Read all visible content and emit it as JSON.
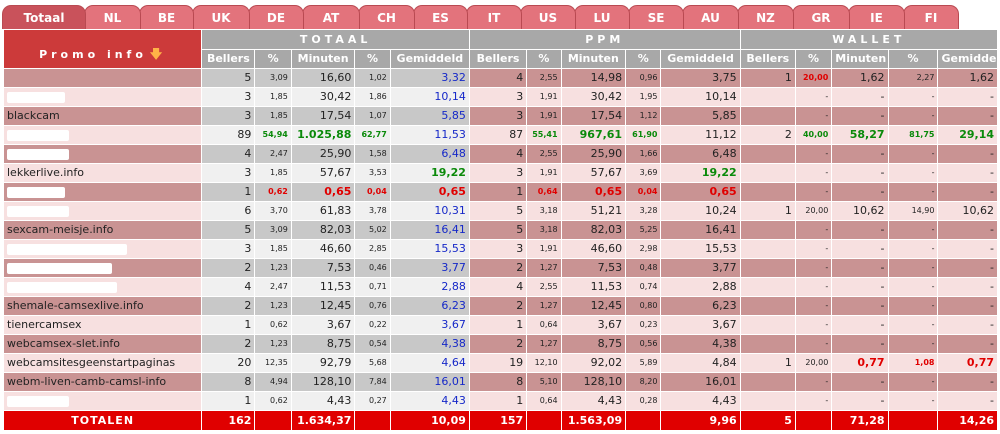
{
  "tabs": [
    "Totaal",
    "NL",
    "BE",
    "UK",
    "DE",
    "AT",
    "CH",
    "ES",
    "IT",
    "US",
    "LU",
    "SE",
    "AU",
    "NZ",
    "GR",
    "IE",
    "FI"
  ],
  "groups": {
    "totaal": "TOTAAL",
    "ppm": "PPM",
    "wallet": "WALLET"
  },
  "columns": {
    "promo": "Promo info",
    "bellers": "Bellers",
    "pct": "%",
    "minuten": "Minuten",
    "gemiddeld": "Gemiddeld"
  },
  "rows": [
    {
      "name": "",
      "redact": 0,
      "t": [
        "5",
        "3,09",
        "16,60",
        "1,02",
        "3,32"
      ],
      "p": [
        "4",
        "2,55",
        "14,98",
        "0,96",
        "3,75"
      ],
      "w": [
        "1",
        "20,00",
        "1,62",
        "2,27",
        "1,62"
      ],
      "tc": [
        "",
        "",
        "",
        "",
        "blue"
      ],
      "pc": [
        "",
        "",
        "",
        "",
        ""
      ],
      "wc": [
        "",
        "red",
        "",
        "",
        ""
      ]
    },
    {
      "name": "",
      "redact": 58,
      "t": [
        "3",
        "1,85",
        "30,42",
        "1,86",
        "10,14"
      ],
      "p": [
        "3",
        "1,91",
        "30,42",
        "1,95",
        "10,14"
      ],
      "w": [
        "",
        "-",
        "-",
        "-",
        "-"
      ],
      "tc": [
        "",
        "",
        "",
        "",
        "blue"
      ],
      "pc": [
        "",
        "",
        "",
        "",
        ""
      ],
      "wc": [
        "",
        "",
        "",
        "",
        ""
      ]
    },
    {
      "name": "blackcam",
      "redact": 0,
      "t": [
        "3",
        "1,85",
        "17,54",
        "1,07",
        "5,85"
      ],
      "p": [
        "3",
        "1,91",
        "17,54",
        "1,12",
        "5,85"
      ],
      "w": [
        "",
        "-",
        "-",
        "-",
        "-"
      ],
      "tc": [
        "",
        "",
        "",
        "",
        "blue"
      ],
      "pc": [
        "",
        "",
        "",
        "",
        ""
      ],
      "wc": [
        "",
        "",
        "",
        "",
        ""
      ]
    },
    {
      "name": "",
      "redact": 62,
      "t": [
        "89",
        "54,94",
        "1.025,88",
        "62,77",
        "11,53"
      ],
      "p": [
        "87",
        "55,41",
        "967,61",
        "61,90",
        "11,12"
      ],
      "w": [
        "2",
        "40,00",
        "58,27",
        "81,75",
        "29,14"
      ],
      "tc": [
        "",
        "green",
        "green",
        "green",
        "blue"
      ],
      "pc": [
        "",
        "green",
        "green",
        "green",
        ""
      ],
      "wc": [
        "",
        "green",
        "green",
        "green",
        "green"
      ]
    },
    {
      "name": "",
      "redact": 62,
      "t": [
        "4",
        "2,47",
        "25,90",
        "1,58",
        "6,48"
      ],
      "p": [
        "4",
        "2,55",
        "25,90",
        "1,66",
        "6,48"
      ],
      "w": [
        "",
        "-",
        "-",
        "-",
        "-"
      ],
      "tc": [
        "",
        "",
        "",
        "",
        "blue"
      ],
      "pc": [
        "",
        "",
        "",
        "",
        ""
      ],
      "wc": [
        "",
        "",
        "",
        "",
        ""
      ]
    },
    {
      "name": "lekkerlive.info",
      "redact": 0,
      "t": [
        "3",
        "1,85",
        "57,67",
        "3,53",
        "19,22"
      ],
      "p": [
        "3",
        "1,91",
        "57,67",
        "3,69",
        "19,22"
      ],
      "w": [
        "",
        "-",
        "-",
        "-",
        "-"
      ],
      "tc": [
        "",
        "",
        "",
        "",
        "green"
      ],
      "pc": [
        "",
        "",
        "",
        "",
        "green"
      ],
      "wc": [
        "",
        "",
        "",
        "",
        ""
      ]
    },
    {
      "name": "",
      "redact": 58,
      "t": [
        "1",
        "0,62",
        "0,65",
        "0,04",
        "0,65"
      ],
      "p": [
        "1",
        "0,64",
        "0,65",
        "0,04",
        "0,65"
      ],
      "w": [
        "",
        "-",
        "-",
        "-",
        "-"
      ],
      "tc": [
        "",
        "red",
        "red",
        "red",
        "red"
      ],
      "pc": [
        "",
        "red",
        "red",
        "red",
        "red"
      ],
      "wc": [
        "",
        "",
        "",
        "",
        ""
      ]
    },
    {
      "name": "",
      "redact": 62,
      "t": [
        "6",
        "3,70",
        "61,83",
        "3,78",
        "10,31"
      ],
      "p": [
        "5",
        "3,18",
        "51,21",
        "3,28",
        "10,24"
      ],
      "w": [
        "1",
        "20,00",
        "10,62",
        "14,90",
        "10,62"
      ],
      "tc": [
        "",
        "",
        "",
        "",
        "blue"
      ],
      "pc": [
        "",
        "",
        "",
        "",
        ""
      ],
      "wc": [
        "",
        "",
        "",
        "",
        ""
      ]
    },
    {
      "name": "sexcam-meisje.info",
      "redact": 0,
      "t": [
        "5",
        "3,09",
        "82,03",
        "5,02",
        "16,41"
      ],
      "p": [
        "5",
        "3,18",
        "82,03",
        "5,25",
        "16,41"
      ],
      "w": [
        "",
        "-",
        "-",
        "-",
        "-"
      ],
      "tc": [
        "",
        "",
        "",
        "",
        "blue"
      ],
      "pc": [
        "",
        "",
        "",
        "",
        ""
      ],
      "wc": [
        "",
        "",
        "",
        "",
        ""
      ]
    },
    {
      "name": "",
      "redact": 120,
      "t": [
        "3",
        "1,85",
        "46,60",
        "2,85",
        "15,53"
      ],
      "p": [
        "3",
        "1,91",
        "46,60",
        "2,98",
        "15,53"
      ],
      "w": [
        "",
        "-",
        "-",
        "-",
        "-"
      ],
      "tc": [
        "",
        "",
        "",
        "",
        "blue"
      ],
      "pc": [
        "",
        "",
        "",
        "",
        ""
      ],
      "wc": [
        "",
        "",
        "",
        "",
        ""
      ]
    },
    {
      "name": "",
      "redact": 105,
      "t": [
        "2",
        "1,23",
        "7,53",
        "0,46",
        "3,77"
      ],
      "p": [
        "2",
        "1,27",
        "7,53",
        "0,48",
        "3,77"
      ],
      "w": [
        "",
        "-",
        "-",
        "-",
        "-"
      ],
      "tc": [
        "",
        "",
        "",
        "",
        "blue"
      ],
      "pc": [
        "",
        "",
        "",
        "",
        ""
      ],
      "wc": [
        "",
        "",
        "",
        "",
        ""
      ]
    },
    {
      "name": "",
      "redact": 110,
      "t": [
        "4",
        "2,47",
        "11,53",
        "0,71",
        "2,88"
      ],
      "p": [
        "4",
        "2,55",
        "11,53",
        "0,74",
        "2,88"
      ],
      "w": [
        "",
        "-",
        "-",
        "-",
        "-"
      ],
      "tc": [
        "",
        "",
        "",
        "",
        "blue"
      ],
      "pc": [
        "",
        "",
        "",
        "",
        ""
      ],
      "wc": [
        "",
        "",
        "",
        "",
        ""
      ]
    },
    {
      "name": "shemale-camsexlive.info",
      "redact": 0,
      "t": [
        "2",
        "1,23",
        "12,45",
        "0,76",
        "6,23"
      ],
      "p": [
        "2",
        "1,27",
        "12,45",
        "0,80",
        "6,23"
      ],
      "w": [
        "",
        "-",
        "-",
        "-",
        "-"
      ],
      "tc": [
        "",
        "",
        "",
        "",
        "blue"
      ],
      "pc": [
        "",
        "",
        "",
        "",
        ""
      ],
      "wc": [
        "",
        "",
        "",
        "",
        ""
      ]
    },
    {
      "name": "tienercamsex",
      "redact": 0,
      "t": [
        "1",
        "0,62",
        "3,67",
        "0,22",
        "3,67"
      ],
      "p": [
        "1",
        "0,64",
        "3,67",
        "0,23",
        "3,67"
      ],
      "w": [
        "",
        "-",
        "-",
        "-",
        "-"
      ],
      "tc": [
        "",
        "",
        "",
        "",
        "blue"
      ],
      "pc": [
        "",
        "",
        "",
        "",
        ""
      ],
      "wc": [
        "",
        "",
        "",
        "",
        ""
      ]
    },
    {
      "name": "webcamsex-slet.info",
      "redact": 0,
      "t": [
        "2",
        "1,23",
        "8,75",
        "0,54",
        "4,38"
      ],
      "p": [
        "2",
        "1,27",
        "8,75",
        "0,56",
        "4,38"
      ],
      "w": [
        "",
        "-",
        "-",
        "-",
        "-"
      ],
      "tc": [
        "",
        "",
        "",
        "",
        "blue"
      ],
      "pc": [
        "",
        "",
        "",
        "",
        ""
      ],
      "wc": [
        "",
        "",
        "",
        "",
        ""
      ]
    },
    {
      "name": "webcamsitesgeenstartpaginas",
      "redact": 0,
      "t": [
        "20",
        "12,35",
        "92,79",
        "5,68",
        "4,64"
      ],
      "p": [
        "19",
        "12,10",
        "92,02",
        "5,89",
        "4,84"
      ],
      "w": [
        "1",
        "20,00",
        "0,77",
        "1,08",
        "0,77"
      ],
      "tc": [
        "",
        "",
        "",
        "",
        "blue"
      ],
      "pc": [
        "",
        "",
        "",
        "",
        ""
      ],
      "wc": [
        "",
        "",
        "red",
        "red",
        "red"
      ]
    },
    {
      "name": "webm-liven-camb-camsl-info",
      "redact": 0,
      "t": [
        "8",
        "4,94",
        "128,10",
        "7,84",
        "16,01"
      ],
      "p": [
        "8",
        "5,10",
        "128,10",
        "8,20",
        "16,01"
      ],
      "w": [
        "",
        "-",
        "-",
        "-",
        "-"
      ],
      "tc": [
        "",
        "",
        "",
        "",
        "blue"
      ],
      "pc": [
        "",
        "",
        "",
        "",
        ""
      ],
      "wc": [
        "",
        "",
        "",
        "",
        ""
      ]
    },
    {
      "name": "",
      "redact": 62,
      "t": [
        "1",
        "0,62",
        "4,43",
        "0,27",
        "4,43"
      ],
      "p": [
        "1",
        "0,64",
        "4,43",
        "0,28",
        "4,43"
      ],
      "w": [
        "",
        "-",
        "-",
        "-",
        "-"
      ],
      "tc": [
        "",
        "",
        "",
        "",
        "blue"
      ],
      "pc": [
        "",
        "",
        "",
        "",
        ""
      ],
      "wc": [
        "",
        "",
        "",
        "",
        ""
      ]
    }
  ],
  "totals": {
    "label": "TOTALEN",
    "t": [
      "162",
      "",
      "1.634,37",
      "",
      "10,09"
    ],
    "p": [
      "157",
      "",
      "1.563,09",
      "",
      "9,96"
    ],
    "w": [
      "5",
      "",
      "71,28",
      "",
      "14,26"
    ]
  }
}
